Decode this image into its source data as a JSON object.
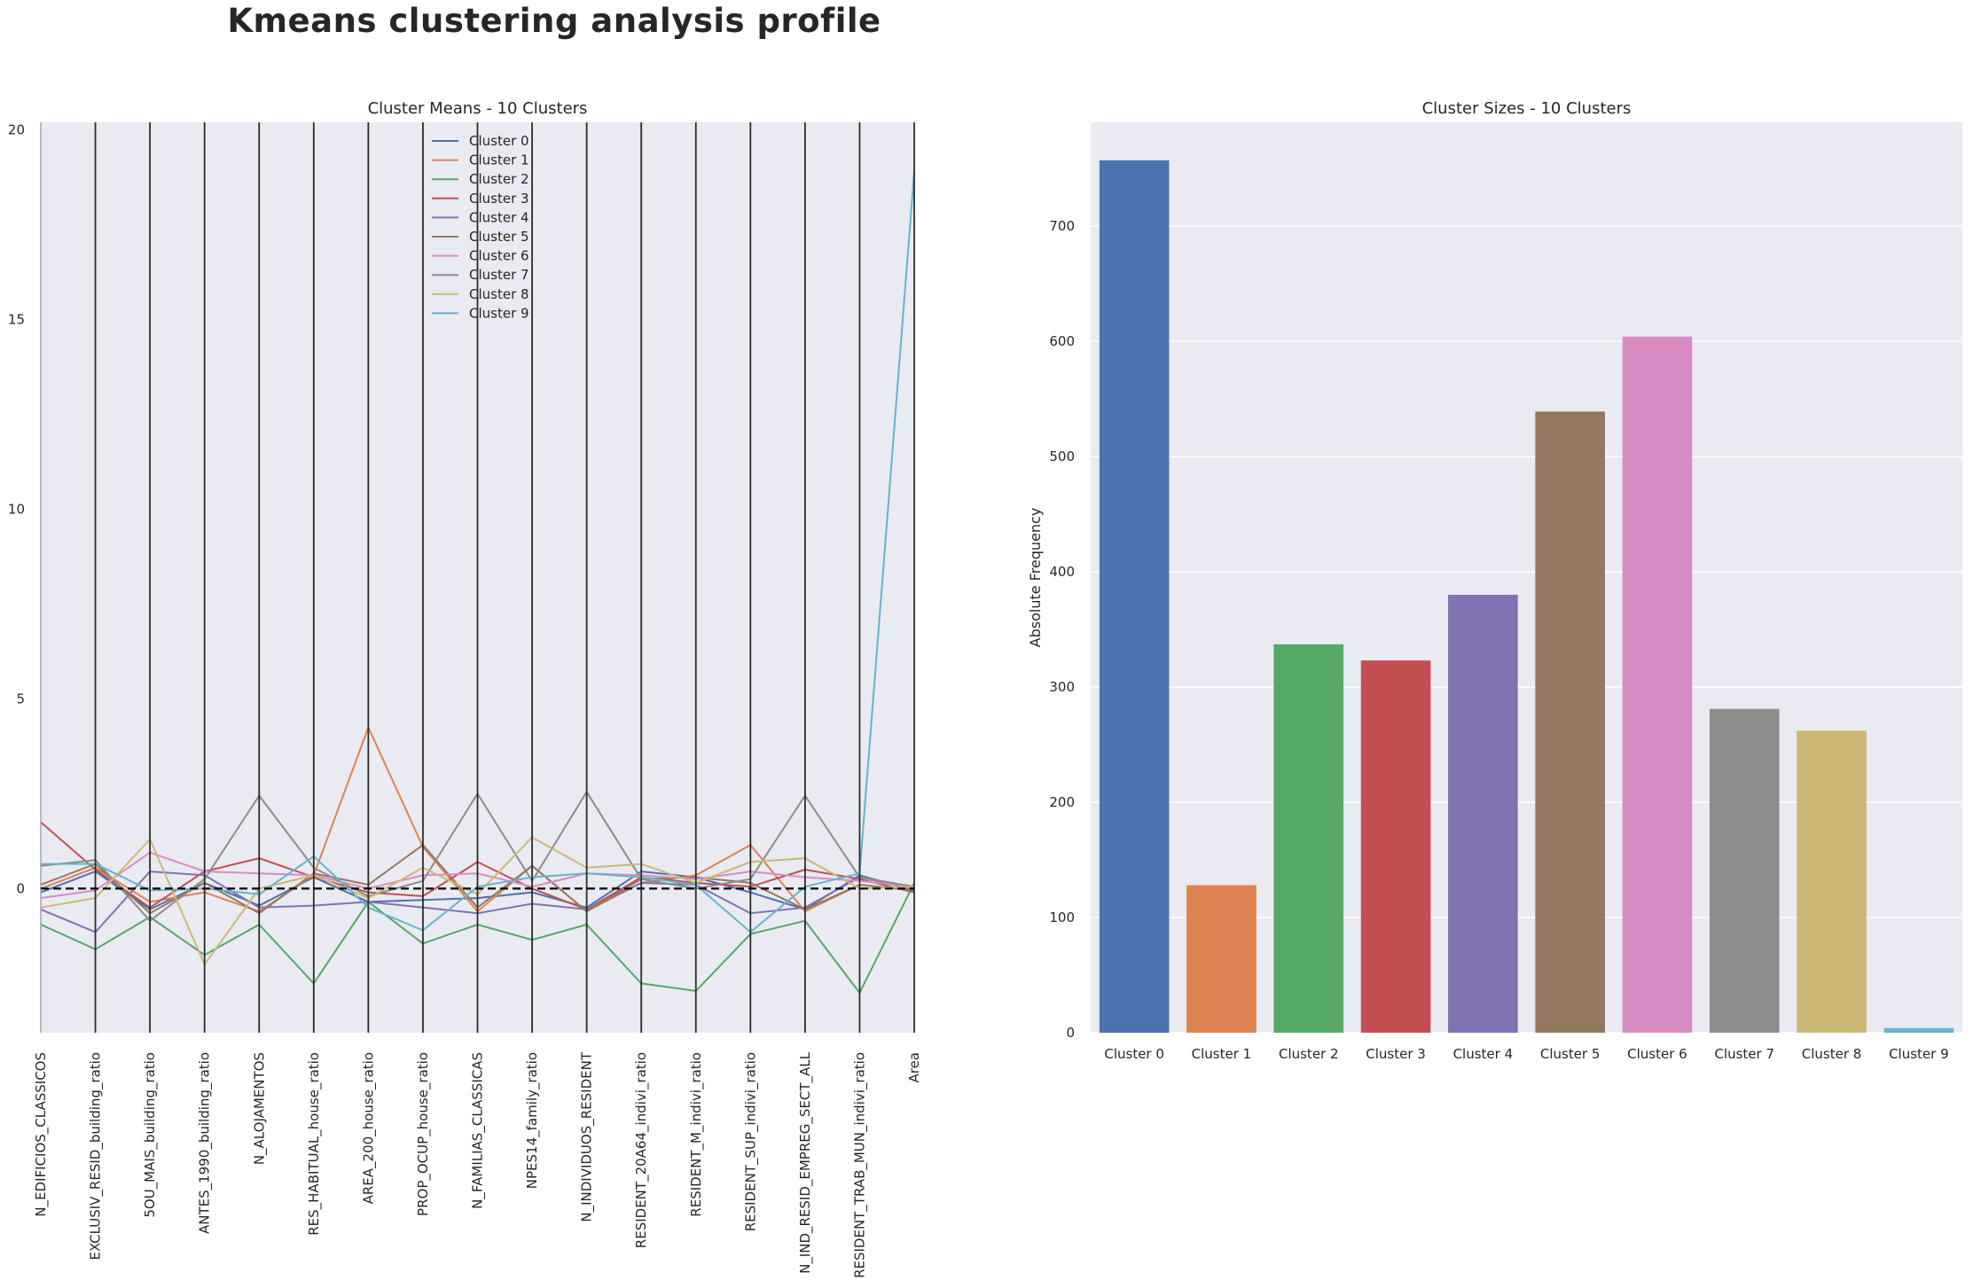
{
  "figure": {
    "suptitle": "Kmeans clustering analysis profile"
  },
  "chart_data": [
    {
      "type": "line",
      "title": "Cluster Means - 10 Clusters",
      "xlabel": "",
      "ylabel": "",
      "ylim": [
        -3.8,
        20.2
      ],
      "yticks": [
        0,
        5,
        10,
        15,
        20
      ],
      "grid": false,
      "legend": "top-center",
      "reference_line": 0,
      "categories": [
        "N_EDIFICIOS_CLASSICOS",
        "EXCLUSIV_RESID_building_ratio",
        "5OU_MAIS_building_ratio",
        "ANTES_1990_building_ratio",
        "N_ALOJAMENTOS",
        "RES_HABITUAL_house_ratio",
        "AREA_200_house_ratio",
        "PROP_OCUP_house_ratio",
        "N_FAMILIAS_CLASSICAS",
        "NPES14_family_ratio",
        "N_INDIVIDUOS_RESIDENT",
        "RESIDENT_20A64_indivi_ratio",
        "RESIDENT_M_indivi_ratio",
        "RESIDENT_SUP_indivi_ratio",
        "N_IND_RESID_EMPREG_SECT_ALL",
        "RESIDENT_TRAB_MUN_indivi_ratio",
        "Area"
      ],
      "series": [
        {
          "name": "Cluster 0",
          "color": "#4c72b0",
          "values": [
            -0.1,
            0.45,
            -0.55,
            0.15,
            -0.45,
            0.3,
            -0.35,
            -0.3,
            -0.25,
            -0.1,
            -0.5,
            0.45,
            0.3,
            -0.1,
            -0.55,
            0.35,
            -0.05
          ]
        },
        {
          "name": "Cluster 1",
          "color": "#dd8452",
          "values": [
            0.0,
            0.55,
            -0.35,
            -0.1,
            -0.6,
            0.35,
            4.25,
            1.1,
            -0.6,
            0.6,
            -0.6,
            0.15,
            0.35,
            1.15,
            -0.6,
            0.1,
            -0.05
          ]
        },
        {
          "name": "Cluster 2",
          "color": "#55a868",
          "values": [
            -0.95,
            -1.6,
            -0.75,
            -1.75,
            -0.95,
            -2.5,
            -0.35,
            -1.45,
            -0.95,
            -1.35,
            -0.95,
            -2.5,
            -2.7,
            -1.2,
            -0.85,
            -2.75,
            0.15
          ]
        },
        {
          "name": "Cluster 3",
          "color": "#c44e52",
          "values": [
            1.75,
            0.5,
            -0.5,
            0.45,
            0.8,
            0.3,
            -0.1,
            -0.2,
            0.7,
            0.0,
            -0.55,
            0.3,
            0.15,
            0.05,
            0.5,
            0.25,
            -0.1
          ]
        },
        {
          "name": "Cluster 4",
          "color": "#8172b3",
          "values": [
            -0.55,
            -1.15,
            0.45,
            0.35,
            -0.5,
            -0.45,
            -0.35,
            -0.5,
            -0.65,
            -0.4,
            -0.55,
            0.15,
            0.1,
            -0.65,
            -0.5,
            0.3,
            0.0
          ]
        },
        {
          "name": "Cluster 5",
          "color": "#937860",
          "values": [
            0.1,
            0.65,
            -0.65,
            0.15,
            -0.65,
            0.4,
            0.1,
            1.15,
            -0.5,
            0.6,
            -0.6,
            0.25,
            0.3,
            0.15,
            -0.55,
            0.1,
            -0.05
          ]
        },
        {
          "name": "Cluster 6",
          "color": "#da8bc3",
          "values": [
            -0.25,
            -0.05,
            0.95,
            0.45,
            0.4,
            0.35,
            0.0,
            0.35,
            0.4,
            0.05,
            0.4,
            0.35,
            0.25,
            0.45,
            0.3,
            0.2,
            0.05
          ]
        },
        {
          "name": "Cluster 7",
          "color": "#8c8c8c",
          "values": [
            0.6,
            0.75,
            -0.85,
            0.25,
            2.45,
            0.55,
            -0.2,
            0.2,
            2.5,
            0.2,
            2.55,
            0.25,
            0.0,
            0.25,
            2.45,
            0.3,
            0.05
          ]
        },
        {
          "name": "Cluster 8",
          "color": "#ccb974",
          "values": [
            -0.5,
            -0.25,
            1.3,
            -2.0,
            0.0,
            0.35,
            -0.25,
            0.55,
            -0.15,
            1.35,
            0.55,
            0.65,
            0.15,
            0.7,
            0.8,
            0.0,
            0.05
          ]
        },
        {
          "name": "Cluster 9",
          "color": "#64b5cd",
          "values": [
            0.65,
            0.65,
            -0.05,
            0.0,
            -0.15,
            0.85,
            -0.5,
            -1.1,
            0.05,
            0.3,
            0.4,
            0.3,
            0.1,
            -1.15,
            0.05,
            0.4,
            18.9
          ]
        }
      ]
    },
    {
      "type": "bar",
      "title": "Cluster Sizes - 10 Clusters",
      "xlabel": "",
      "ylabel": "Absolute Frequency",
      "ylim": [
        0,
        790
      ],
      "yticks": [
        0,
        100,
        200,
        300,
        400,
        500,
        600,
        700
      ],
      "grid": true,
      "categories": [
        "Cluster 0",
        "Cluster 1",
        "Cluster 2",
        "Cluster 3",
        "Cluster 4",
        "Cluster 5",
        "Cluster 6",
        "Cluster 7",
        "Cluster 8",
        "Cluster 9"
      ],
      "values": [
        757,
        128,
        337,
        323,
        380,
        539,
        604,
        281,
        262,
        4
      ],
      "colors": [
        "#4c72b0",
        "#dd8452",
        "#55a868",
        "#c44e52",
        "#8172b3",
        "#937860",
        "#da8bc3",
        "#8c8c8c",
        "#ccb974",
        "#64b5cd"
      ]
    }
  ]
}
